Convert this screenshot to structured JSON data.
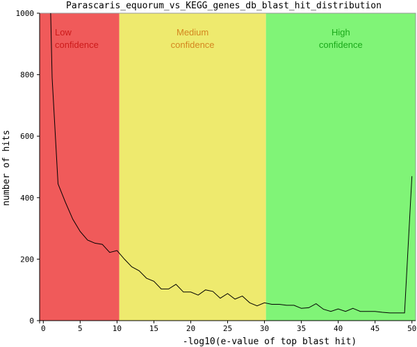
{
  "chart_data": {
    "type": "line",
    "title": "Parascaris_equorum_vs_KEGG_genes_db_blast_hit_distribution",
    "xlabel": "-log10(e-value of top blast hit)",
    "ylabel": "number of hits",
    "xlim": [
      -0.5,
      50.5
    ],
    "ylim": [
      0,
      1000
    ],
    "xticks": [
      0,
      5,
      10,
      15,
      20,
      25,
      30,
      35,
      40,
      45,
      50
    ],
    "yticks": [
      0,
      200,
      400,
      600,
      800,
      1000
    ],
    "grid": false,
    "line_color": "#000000",
    "regions": [
      {
        "label_line1": "Low",
        "label_line2": "confidence",
        "x_start": -0.5,
        "x_end": 10.3,
        "fill": "#f05a5a",
        "text_color": "#cc1a1a",
        "label_position": "top-left"
      },
      {
        "label_line1": "Medium",
        "label_line2": "confidence",
        "x_start": 10.3,
        "x_end": 30.2,
        "fill": "#eeea6e",
        "text_color": "#d4861f",
        "label_position": "top-center"
      },
      {
        "label_line1": "High",
        "label_line2": "confidence",
        "x_start": 30.2,
        "x_end": 50.5,
        "fill": "#80f477",
        "text_color": "#1aa81a",
        "label_position": "top-center"
      }
    ],
    "series": [
      {
        "x": [
          1,
          1.2,
          2,
          3,
          4,
          5,
          6,
          7,
          8,
          9,
          10,
          11,
          12,
          13,
          14,
          15,
          16,
          17,
          18,
          19,
          20,
          21,
          22,
          23,
          24,
          25,
          26,
          27,
          28,
          29,
          30,
          31,
          32,
          33,
          34,
          35,
          36,
          37,
          38,
          39,
          40,
          41,
          42,
          43,
          44,
          45,
          46,
          47,
          48,
          49,
          50
        ],
        "y": [
          1000,
          790,
          445,
          385,
          330,
          290,
          262,
          252,
          248,
          222,
          228,
          200,
          175,
          162,
          138,
          128,
          103,
          103,
          118,
          93,
          93,
          83,
          100,
          95,
          73,
          88,
          70,
          80,
          58,
          48,
          58,
          53,
          53,
          50,
          50,
          40,
          42,
          55,
          37,
          30,
          38,
          30,
          40,
          30,
          30,
          30,
          27,
          25,
          25,
          25,
          470
        ]
      }
    ]
  }
}
